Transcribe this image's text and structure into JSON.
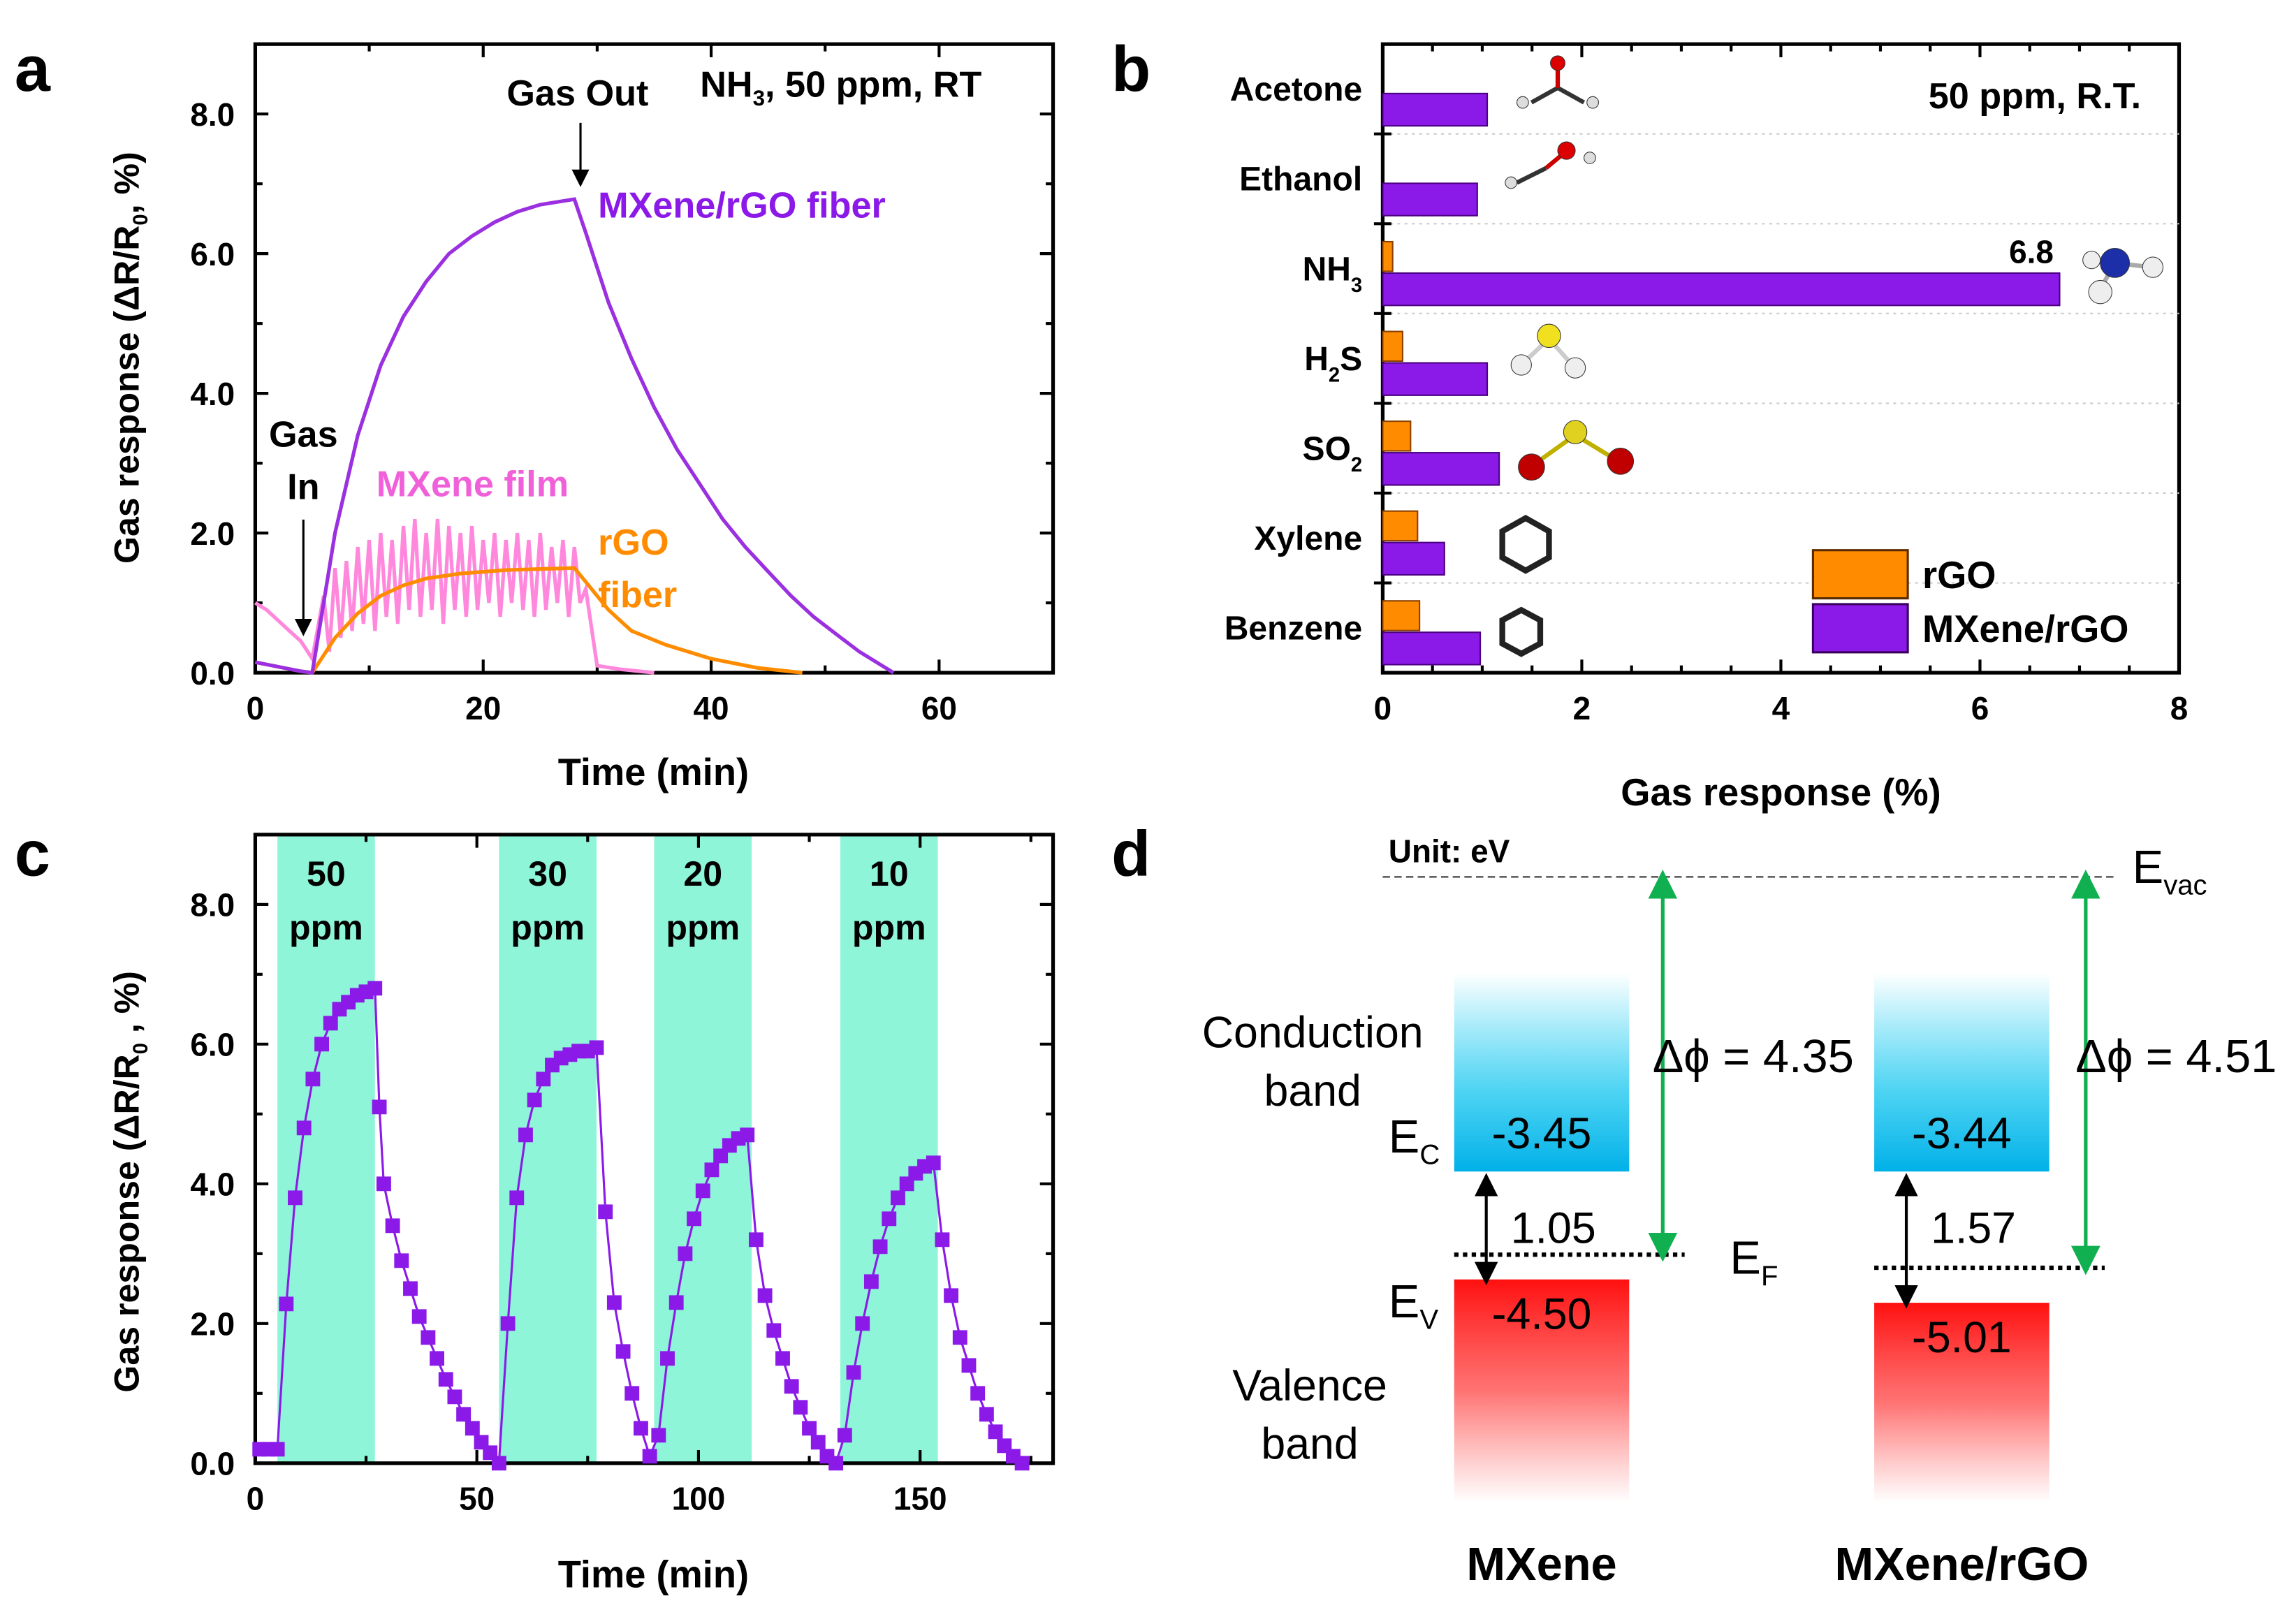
{
  "panel_labels": [
    "a",
    "b",
    "c",
    "d"
  ],
  "colors": {
    "mxene_rgo": "#8b1ae8",
    "rgo": "#ff8c00",
    "mxene_film": "#ff88dd",
    "bands": "#8ef5d8",
    "green_arrow": "#10b050",
    "conduction": "#00c8f0",
    "valence": "#ff1010"
  },
  "chart_data": [
    {
      "type": "line",
      "xlabel": "Time (min)",
      "ylabel": {
        "main": "Gas response (ΔR/R",
        "sub": "0",
        "end": ", %)"
      },
      "xlim": [
        0,
        70
      ],
      "ylim": [
        0,
        9
      ],
      "xticks": [
        0,
        20,
        40,
        60
      ],
      "yticks": [
        "0.0",
        "2.0",
        "4.0",
        "6.0",
        "8.0"
      ],
      "annotations": {
        "gas_out": "Gas Out",
        "gas_in_1": "Gas",
        "gas_in_2": "In",
        "condition": {
          "a": "NH",
          "sub": "3",
          "b": ", 50 ppm, RT"
        }
      },
      "series": [
        {
          "name": "MXene/rGO fiber",
          "x": [
            0,
            4,
            5,
            7,
            9,
            11,
            13,
            15,
            17,
            19,
            21,
            23,
            25,
            28,
            29,
            31,
            33,
            35,
            37,
            39,
            41,
            43,
            45,
            47,
            49,
            51,
            53,
            55,
            56
          ],
          "y": [
            0.15,
            0.02,
            0,
            2.0,
            3.4,
            4.4,
            5.1,
            5.6,
            6.0,
            6.25,
            6.45,
            6.6,
            6.7,
            6.78,
            6.3,
            5.3,
            4.5,
            3.8,
            3.2,
            2.7,
            2.2,
            1.8,
            1.45,
            1.1,
            0.8,
            0.55,
            0.3,
            0.1,
            0
          ]
        },
        {
          "name": "rGO fiber",
          "name_lines": [
            "rGO",
            "fiber"
          ],
          "x": [
            0,
            4,
            5,
            7,
            9,
            11,
            13,
            15,
            18,
            22,
            28,
            29,
            31,
            33,
            36,
            40,
            44,
            48
          ],
          "y": [
            0.15,
            0.02,
            0,
            0.5,
            0.85,
            1.1,
            1.25,
            1.35,
            1.42,
            1.47,
            1.5,
            1.3,
            0.9,
            0.6,
            0.4,
            0.2,
            0.07,
            0
          ]
        },
        {
          "name": "MXene film",
          "x": [
            0,
            1,
            2,
            3,
            4,
            5,
            6,
            6.5,
            7,
            7.5,
            8,
            8.5,
            9,
            9.5,
            10,
            10.5,
            11,
            11.5,
            12,
            12.5,
            13,
            13.5,
            14,
            14.5,
            15,
            15.5,
            16,
            16.5,
            17,
            17.5,
            18,
            18.5,
            19,
            19.5,
            20,
            20.5,
            21,
            21.5,
            22,
            22.5,
            23,
            23.5,
            24,
            24.5,
            25,
            25.5,
            26,
            26.5,
            27,
            27.5,
            28,
            28.5,
            29,
            30,
            32,
            35
          ],
          "y": [
            1.0,
            0.9,
            0.75,
            0.6,
            0.45,
            0.2,
            1.1,
            0.3,
            1.5,
            0.5,
            1.6,
            0.6,
            1.8,
            0.7,
            1.9,
            0.6,
            2.0,
            0.8,
            1.9,
            0.7,
            2.1,
            0.9,
            2.2,
            0.8,
            2.0,
            0.9,
            2.2,
            0.7,
            2.1,
            0.9,
            2.0,
            0.8,
            2.1,
            0.9,
            1.9,
            1.0,
            2.0,
            0.8,
            1.9,
            1.0,
            2.0,
            0.9,
            1.9,
            0.8,
            2.0,
            0.9,
            1.8,
            1.0,
            1.9,
            0.8,
            1.8,
            1.0,
            1.2,
            0.1,
            0.05,
            0
          ]
        }
      ]
    },
    {
      "type": "bar",
      "orientation": "horizontal",
      "title": "50 ppm, R.T.",
      "xlabel": "Gas response (%)",
      "xlim": [
        0,
        8
      ],
      "xticks": [
        0,
        2,
        4,
        6,
        8
      ],
      "categories": [
        {
          "text": "Acetone",
          "sub": ""
        },
        {
          "text": "Ethanol",
          "sub": ""
        },
        {
          "text": "NH",
          "sub": "3"
        },
        {
          "text": "H",
          "sub": "2",
          "after": "S"
        },
        {
          "text": "SO",
          "sub": "2"
        },
        {
          "text": "Xylene",
          "sub": ""
        },
        {
          "text": "Benzene",
          "sub": ""
        }
      ],
      "series": [
        {
          "name": "rGO",
          "values": [
            0,
            0,
            0.1,
            0.2,
            0.28,
            0.35,
            0.37
          ]
        },
        {
          "name": "MXene/rGO",
          "values": [
            1.05,
            0.95,
            6.8,
            1.05,
            1.17,
            0.62,
            0.98
          ]
        }
      ],
      "data_labels": [
        {
          "category": "NH3",
          "text": "6.8"
        }
      ],
      "legend": "bottom-right"
    },
    {
      "type": "scatter",
      "xlabel": "Time (min)",
      "ylabel": {
        "main": "Gas response (ΔR/R",
        "sub": "0",
        "end": " , %)"
      },
      "xlim": [
        0,
        180
      ],
      "ylim": [
        0,
        9
      ],
      "xticks": [
        0,
        50,
        100,
        150
      ],
      "yticks": [
        "0.0",
        "2.0",
        "4.0",
        "6.0",
        "8.0"
      ],
      "shaded_regions": [
        {
          "from": 5,
          "to": 27,
          "label_1": "50",
          "label_2": "ppm"
        },
        {
          "from": 55,
          "to": 77,
          "label_1": "30",
          "label_2": "ppm"
        },
        {
          "from": 90,
          "to": 112,
          "label_1": "20",
          "label_2": "ppm"
        },
        {
          "from": 132,
          "to": 154,
          "label_1": "10",
          "label_2": "ppm"
        }
      ],
      "series": [
        {
          "x": [
            1,
            3,
            5,
            7,
            9,
            11,
            13,
            15,
            17,
            19,
            21,
            23,
            25,
            27,
            28,
            29,
            31,
            33,
            35,
            37,
            39,
            41,
            43,
            45,
            47,
            49,
            51,
            53,
            55,
            57,
            59,
            61,
            63,
            65,
            67,
            69,
            71,
            73,
            75,
            77,
            79,
            81,
            83,
            85,
            87,
            89,
            91,
            93,
            95,
            97,
            99,
            101,
            103,
            105,
            107,
            109,
            111,
            113,
            115,
            117,
            119,
            121,
            123,
            125,
            127,
            129,
            131,
            133,
            135,
            137,
            139,
            141,
            143,
            145,
            147,
            149,
            151,
            153,
            155,
            157,
            159,
            161,
            163,
            165,
            167,
            169,
            171,
            173
          ],
          "y": [
            0.2,
            0.2,
            0.2,
            2.28,
            3.8,
            4.8,
            5.5,
            6.0,
            6.3,
            6.5,
            6.6,
            6.7,
            6.75,
            6.8,
            5.1,
            4.0,
            3.4,
            2.9,
            2.5,
            2.1,
            1.8,
            1.5,
            1.2,
            0.95,
            0.7,
            0.5,
            0.3,
            0.15,
            0.0,
            2.0,
            3.8,
            4.7,
            5.2,
            5.5,
            5.7,
            5.8,
            5.85,
            5.9,
            5.9,
            5.95,
            3.6,
            2.3,
            1.6,
            1.0,
            0.5,
            0.1,
            0.4,
            1.5,
            2.3,
            3.0,
            3.5,
            3.9,
            4.2,
            4.4,
            4.55,
            4.65,
            4.7,
            3.2,
            2.4,
            1.9,
            1.5,
            1.1,
            0.8,
            0.5,
            0.3,
            0.1,
            0.0,
            0.4,
            1.3,
            2.0,
            2.6,
            3.1,
            3.5,
            3.8,
            4.0,
            4.15,
            4.25,
            4.3,
            3.2,
            2.4,
            1.8,
            1.4,
            1.0,
            0.7,
            0.45,
            0.25,
            0.1,
            0.0
          ]
        }
      ]
    }
  ],
  "diagram": {
    "unit": "Unit:  eV",
    "evac": {
      "main": "E",
      "sub": "vac"
    },
    "ec": {
      "main": "E",
      "sub": "C"
    },
    "ev": {
      "main": "E",
      "sub": "V"
    },
    "ef": {
      "main": "E",
      "sub": "F"
    },
    "conduction_band": [
      "Conduction",
      "band"
    ],
    "valence_band": [
      "Valence",
      "band"
    ],
    "mxene": {
      "name": "MXene",
      "cb": "-3.45",
      "vb": "-4.50",
      "gap": "1.05",
      "work_function": "Δϕ = 4.35"
    },
    "mxene_rgo": {
      "name": "MXene/rGO",
      "cb": "-3.44",
      "vb": "-5.01",
      "gap": "1.57",
      "work_function": "Δϕ = 4.51"
    }
  }
}
